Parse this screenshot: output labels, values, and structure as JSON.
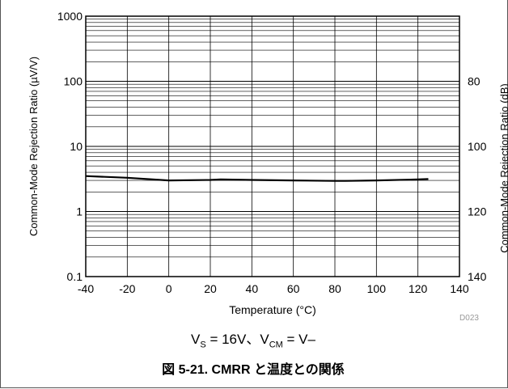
{
  "chart_data": {
    "type": "line",
    "xlabel": "Temperature (°C)",
    "ylabel": "Common-Mode Rejection Ratio (µV/V)",
    "y2label": "Common-Mode Rejection Ratio (dB)",
    "x_ticks": [
      "-40",
      "-20",
      "0",
      "20",
      "40",
      "60",
      "80",
      "100",
      "120",
      "140"
    ],
    "y_ticks": [
      "0.1",
      "1",
      "10",
      "100",
      "1000"
    ],
    "y2_ticks": [
      "80",
      "100",
      "120",
      "140"
    ],
    "xlim": [
      -40,
      140
    ],
    "ylim": [
      0.1,
      1000
    ],
    "y_scale": "log",
    "y2lim": [
      140,
      60
    ],
    "grid": true,
    "series": [
      {
        "x": [
          -40,
          -20,
          0,
          20,
          25,
          40,
          60,
          80,
          85,
          100,
          120,
          125
        ],
        "y": [
          3.5,
          3.3,
          3.0,
          3.05,
          3.1,
          3.05,
          3.0,
          2.95,
          2.95,
          3.0,
          3.1,
          3.15
        ]
      }
    ],
    "colors": {
      "line": "#000000",
      "grid": "#000000",
      "code": "#999999"
    },
    "annotation": "D023"
  },
  "condition": {
    "v_s": "V",
    "v_s_sub": "S",
    "mid": " = 16V、V",
    "cm_sub": "CM",
    "tail": " = V–"
  },
  "figure_title": "図 5-21. CMRR と温度との関係"
}
